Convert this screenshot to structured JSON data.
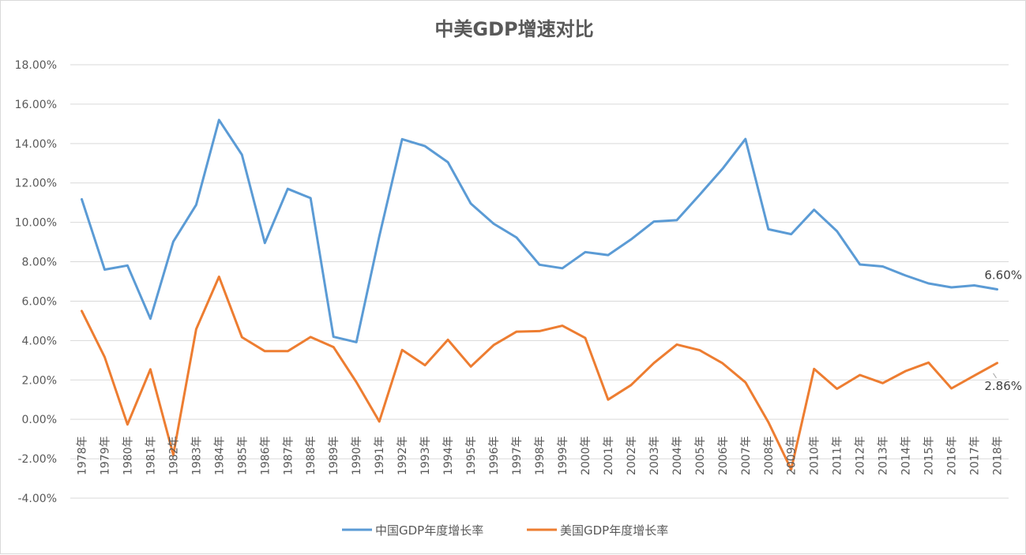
{
  "chart_data": {
    "type": "line",
    "title": "中美GDP增速对比",
    "xlabel": "",
    "ylabel": "",
    "ylim": [
      -0.04,
      0.18
    ],
    "y_ticks": [
      "18.00%",
      "16.00%",
      "14.00%",
      "12.00%",
      "10.00%",
      "8.00%",
      "6.00%",
      "4.00%",
      "2.00%",
      "0.00%",
      "-2.00%",
      "-4.00%"
    ],
    "grid": true,
    "legend_position": "bottom",
    "categories": [
      "1978年",
      "1979年",
      "1980年",
      "1981年",
      "1982年",
      "1983年",
      "1984年",
      "1985年",
      "1986年",
      "1987年",
      "1988年",
      "1989年",
      "1990年",
      "1991年",
      "1992年",
      "1993年",
      "1994年",
      "1995年",
      "1996年",
      "1997年",
      "1998年",
      "1999年",
      "2000年",
      "2001年",
      "2002年",
      "2003年",
      "2004年",
      "2005年",
      "2006年",
      "2007年",
      "2008年",
      "2009年",
      "2010年",
      "2011年",
      "2012年",
      "2013年",
      "2014年",
      "2015年",
      "2016年",
      "2017年",
      "2018年"
    ],
    "series": [
      {
        "name": "中国GDP年度增长率",
        "color": "#5b9bd5",
        "values": [
          0.1117,
          0.076,
          0.0781,
          0.0511,
          0.0902,
          0.1089,
          0.152,
          0.1343,
          0.0895,
          0.117,
          0.1123,
          0.0419,
          0.0392,
          0.0929,
          0.1422,
          0.1387,
          0.1305,
          0.1095,
          0.0993,
          0.0923,
          0.0785,
          0.0767,
          0.0849,
          0.0834,
          0.0913,
          0.1004,
          0.1011,
          0.114,
          0.1272,
          0.1423,
          0.0965,
          0.094,
          0.1064,
          0.0955,
          0.0786,
          0.0776,
          0.073,
          0.069,
          0.067,
          0.068,
          0.066
        ],
        "end_label": "6.60%"
      },
      {
        "name": "美国GDP年度增长率",
        "color": "#ed7d31",
        "values": [
          0.055,
          0.0316,
          -0.0026,
          0.0254,
          -0.018,
          0.0458,
          0.0724,
          0.0417,
          0.0346,
          0.0346,
          0.0418,
          0.0367,
          0.0189,
          -0.0011,
          0.0352,
          0.0275,
          0.0404,
          0.0268,
          0.0377,
          0.0445,
          0.0448,
          0.0475,
          0.0413,
          0.01,
          0.0174,
          0.0286,
          0.038,
          0.0351,
          0.0285,
          0.0188,
          -0.0014,
          -0.0254,
          0.0256,
          0.0155,
          0.0225,
          0.0184,
          0.0245,
          0.0288,
          0.0157,
          0.0222,
          0.0286
        ],
        "end_label": "2.86%"
      }
    ]
  }
}
